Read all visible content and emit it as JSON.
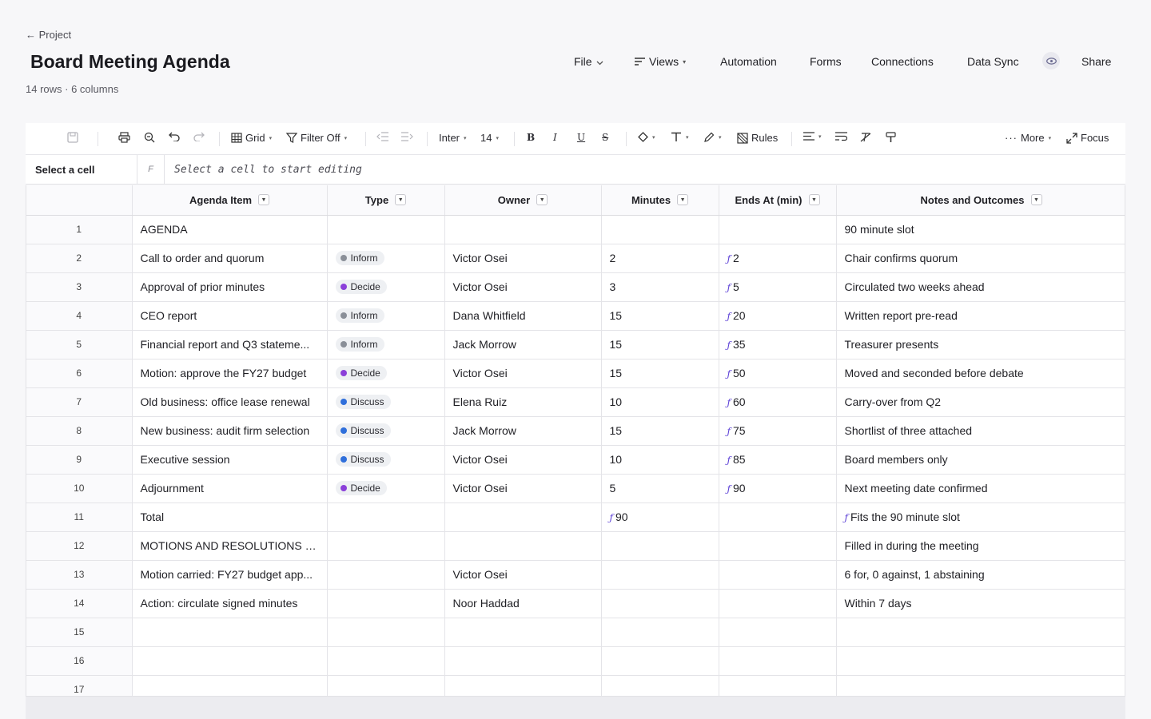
{
  "header": {
    "back_label": "← Project",
    "title": "Board Meeting Agenda",
    "subtitle": "14 rows · 6 columns"
  },
  "topnav": {
    "file": "File",
    "views": "Views",
    "automation": "Automation",
    "forms": "Forms",
    "connections": "Connections",
    "data_sync": "Data Sync",
    "share": "Share"
  },
  "toolbar": {
    "grid": "Grid",
    "filter": "Filter Off",
    "font": "Inter",
    "font_size": "14",
    "bold": "B",
    "italic": "I",
    "underline": "U",
    "strike": "S",
    "rules": "Rules",
    "more": "More",
    "focus": "Focus"
  },
  "formula_bar": {
    "cell_ref": "Select a cell",
    "fx": "F",
    "placeholder": "Select a cell to start editing"
  },
  "colors": {
    "inform": "#8a8f98",
    "decide": "#8b3fd9",
    "discuss": "#2f6fdb",
    "formula": "#5b3fd6"
  },
  "columns": [
    "Agenda Item",
    "Type",
    "Owner",
    "Minutes",
    "Ends At (min)",
    "Notes and Outcomes"
  ],
  "rows": [
    {
      "n": "1",
      "item": "AGENDA",
      "type": "",
      "owner": "",
      "minutes": "",
      "minutes_fx": false,
      "ends": "",
      "notes": "90 minute slot",
      "notes_fx": false
    },
    {
      "n": "2",
      "item": "Call to order and quorum",
      "type": "Inform",
      "owner": "Victor Osei",
      "minutes": "2",
      "minutes_fx": false,
      "ends": "2",
      "notes": "Chair confirms quorum",
      "notes_fx": false
    },
    {
      "n": "3",
      "item": "Approval of prior minutes",
      "type": "Decide",
      "owner": "Victor Osei",
      "minutes": "3",
      "minutes_fx": false,
      "ends": "5",
      "notes": "Circulated two weeks ahead",
      "notes_fx": false
    },
    {
      "n": "4",
      "item": "CEO report",
      "type": "Inform",
      "owner": "Dana Whitfield",
      "minutes": "15",
      "minutes_fx": false,
      "ends": "20",
      "notes": "Written report pre-read",
      "notes_fx": false
    },
    {
      "n": "5",
      "item": "Financial report and Q3 stateme...",
      "type": "Inform",
      "owner": "Jack Morrow",
      "minutes": "15",
      "minutes_fx": false,
      "ends": "35",
      "notes": "Treasurer presents",
      "notes_fx": false
    },
    {
      "n": "6",
      "item": "Motion: approve the FY27 budget",
      "type": "Decide",
      "owner": "Victor Osei",
      "minutes": "15",
      "minutes_fx": false,
      "ends": "50",
      "notes": "Moved and seconded before debate",
      "notes_fx": false
    },
    {
      "n": "7",
      "item": "Old business: office lease renewal",
      "type": "Discuss",
      "owner": "Elena Ruiz",
      "minutes": "10",
      "minutes_fx": false,
      "ends": "60",
      "notes": "Carry-over from Q2",
      "notes_fx": false
    },
    {
      "n": "8",
      "item": "New business: audit firm selection",
      "type": "Discuss",
      "owner": "Jack Morrow",
      "minutes": "15",
      "minutes_fx": false,
      "ends": "75",
      "notes": "Shortlist of three attached",
      "notes_fx": false
    },
    {
      "n": "9",
      "item": "Executive session",
      "type": "Discuss",
      "owner": "Victor Osei",
      "minutes": "10",
      "minutes_fx": false,
      "ends": "85",
      "notes": "Board members only",
      "notes_fx": false
    },
    {
      "n": "10",
      "item": "Adjournment",
      "type": "Decide",
      "owner": "Victor Osei",
      "minutes": "5",
      "minutes_fx": false,
      "ends": "90",
      "notes": "Next meeting date confirmed",
      "notes_fx": false
    },
    {
      "n": "11",
      "item": "Total",
      "type": "",
      "owner": "",
      "minutes": "90",
      "minutes_fx": true,
      "ends": "",
      "notes": "Fits the 90 minute slot",
      "notes_fx": true
    },
    {
      "n": "12",
      "item": "MOTIONS AND RESOLUTIONS C...",
      "type": "",
      "owner": "",
      "minutes": "",
      "minutes_fx": false,
      "ends": "",
      "notes": "Filled in during the meeting",
      "notes_fx": false
    },
    {
      "n": "13",
      "item": "Motion carried: FY27 budget app...",
      "type": "",
      "owner": "Victor Osei",
      "minutes": "",
      "minutes_fx": false,
      "ends": "",
      "notes": "6 for, 0 against, 1 abstaining",
      "notes_fx": false
    },
    {
      "n": "14",
      "item": "Action: circulate signed minutes",
      "type": "",
      "owner": "Noor Haddad",
      "minutes": "",
      "minutes_fx": false,
      "ends": "",
      "notes": "Within 7 days",
      "notes_fx": false
    },
    {
      "n": "15",
      "item": "",
      "type": "",
      "owner": "",
      "minutes": "",
      "minutes_fx": false,
      "ends": "",
      "notes": "",
      "notes_fx": false
    },
    {
      "n": "16",
      "item": "",
      "type": "",
      "owner": "",
      "minutes": "",
      "minutes_fx": false,
      "ends": "",
      "notes": "",
      "notes_fx": false
    },
    {
      "n": "17",
      "item": "",
      "type": "",
      "owner": "",
      "minutes": "",
      "minutes_fx": false,
      "ends": "",
      "notes": "",
      "notes_fx": false
    }
  ]
}
